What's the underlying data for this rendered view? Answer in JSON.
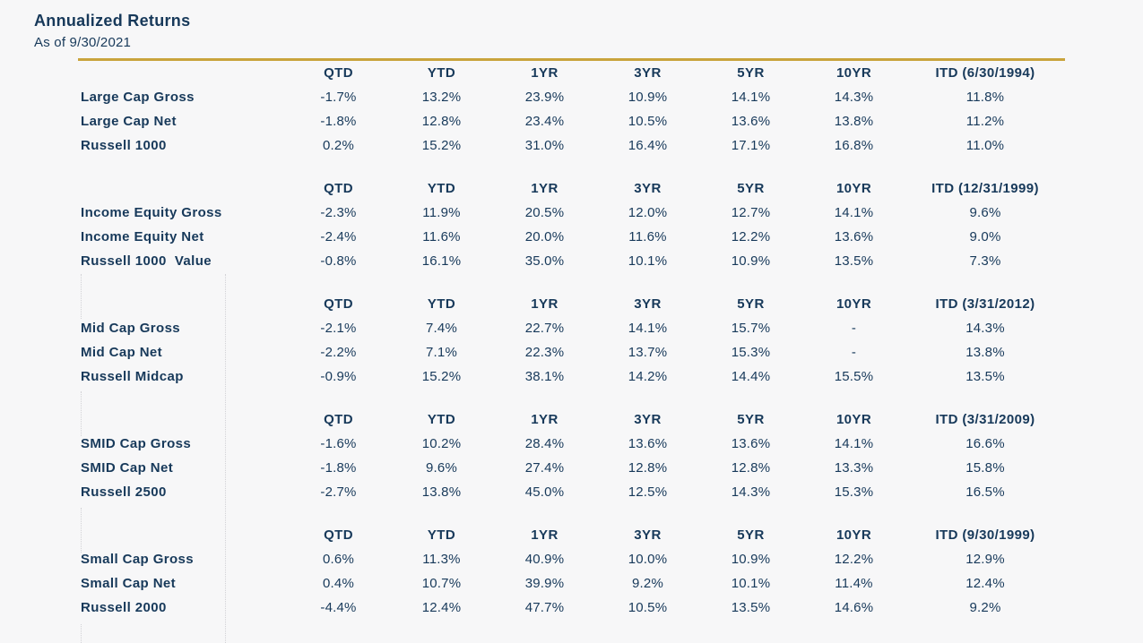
{
  "report": {
    "title": "Annualized Returns",
    "as_of": "As of 9/30/2021"
  },
  "colors": {
    "text_navy": "#17395a",
    "rule_gold": "#c9a43c",
    "background": "#f7f7f8",
    "gridline_dotted": "#d2d2d6"
  },
  "table": {
    "base_columns": [
      "QTD",
      "YTD",
      "1YR",
      "3YR",
      "5YR",
      "10YR"
    ],
    "sections": [
      {
        "itd_header": "ITD (6/30/1994)",
        "rows": [
          {
            "label": "Large Cap Gross",
            "values": [
              "-1.7%",
              "13.2%",
              "23.9%",
              "10.9%",
              "14.1%",
              "14.3%",
              "11.8%"
            ]
          },
          {
            "label": "Large Cap Net",
            "values": [
              "-1.8%",
              "12.8%",
              "23.4%",
              "10.5%",
              "13.6%",
              "13.8%",
              "11.2%"
            ]
          },
          {
            "label": "Russell 1000",
            "values": [
              "0.2%",
              "15.2%",
              "31.0%",
              "16.4%",
              "17.1%",
              "16.8%",
              "11.0%"
            ]
          }
        ]
      },
      {
        "itd_header": "ITD (12/31/1999)",
        "rows": [
          {
            "label": "Income Equity Gross",
            "values": [
              "-2.3%",
              "11.9%",
              "20.5%",
              "12.0%",
              "12.7%",
              "14.1%",
              "9.6%"
            ]
          },
          {
            "label": "Income Equity Net",
            "values": [
              "-2.4%",
              "11.6%",
              "20.0%",
              "11.6%",
              "12.2%",
              "13.6%",
              "9.0%"
            ]
          },
          {
            "label": "Russell 1000  Value",
            "values": [
              "-0.8%",
              "16.1%",
              "35.0%",
              "10.1%",
              "10.9%",
              "13.5%",
              "7.3%"
            ]
          }
        ]
      },
      {
        "itd_header": "ITD (3/31/2012)",
        "rows": [
          {
            "label": "Mid Cap Gross",
            "values": [
              "-2.1%",
              "7.4%",
              "22.7%",
              "14.1%",
              "15.7%",
              "-",
              "14.3%"
            ]
          },
          {
            "label": "Mid Cap Net",
            "values": [
              "-2.2%",
              "7.1%",
              "22.3%",
              "13.7%",
              "15.3%",
              "-",
              "13.8%"
            ]
          },
          {
            "label": "Russell Midcap",
            "values": [
              "-0.9%",
              "15.2%",
              "38.1%",
              "14.2%",
              "14.4%",
              "15.5%",
              "13.5%"
            ]
          }
        ]
      },
      {
        "itd_header": "ITD (3/31/2009)",
        "rows": [
          {
            "label": "SMID Cap Gross",
            "values": [
              "-1.6%",
              "10.2%",
              "28.4%",
              "13.6%",
              "13.6%",
              "14.1%",
              "16.6%"
            ]
          },
          {
            "label": "SMID Cap Net",
            "values": [
              "-1.8%",
              "9.6%",
              "27.4%",
              "12.8%",
              "12.8%",
              "13.3%",
              "15.8%"
            ]
          },
          {
            "label": "Russell 2500",
            "values": [
              "-2.7%",
              "13.8%",
              "45.0%",
              "12.5%",
              "14.3%",
              "15.3%",
              "16.5%"
            ]
          }
        ]
      },
      {
        "itd_header": "ITD (9/30/1999)",
        "rows": [
          {
            "label": "Small Cap Gross",
            "values": [
              "0.6%",
              "11.3%",
              "40.9%",
              "10.0%",
              "10.9%",
              "12.2%",
              "12.9%"
            ]
          },
          {
            "label": "Small Cap Net",
            "values": [
              "0.4%",
              "10.7%",
              "39.9%",
              "9.2%",
              "10.1%",
              "11.4%",
              "12.4%"
            ]
          },
          {
            "label": "Russell 2000",
            "values": [
              "-4.4%",
              "12.4%",
              "47.7%",
              "10.5%",
              "13.5%",
              "14.6%",
              "9.2%"
            ]
          }
        ]
      }
    ]
  }
}
